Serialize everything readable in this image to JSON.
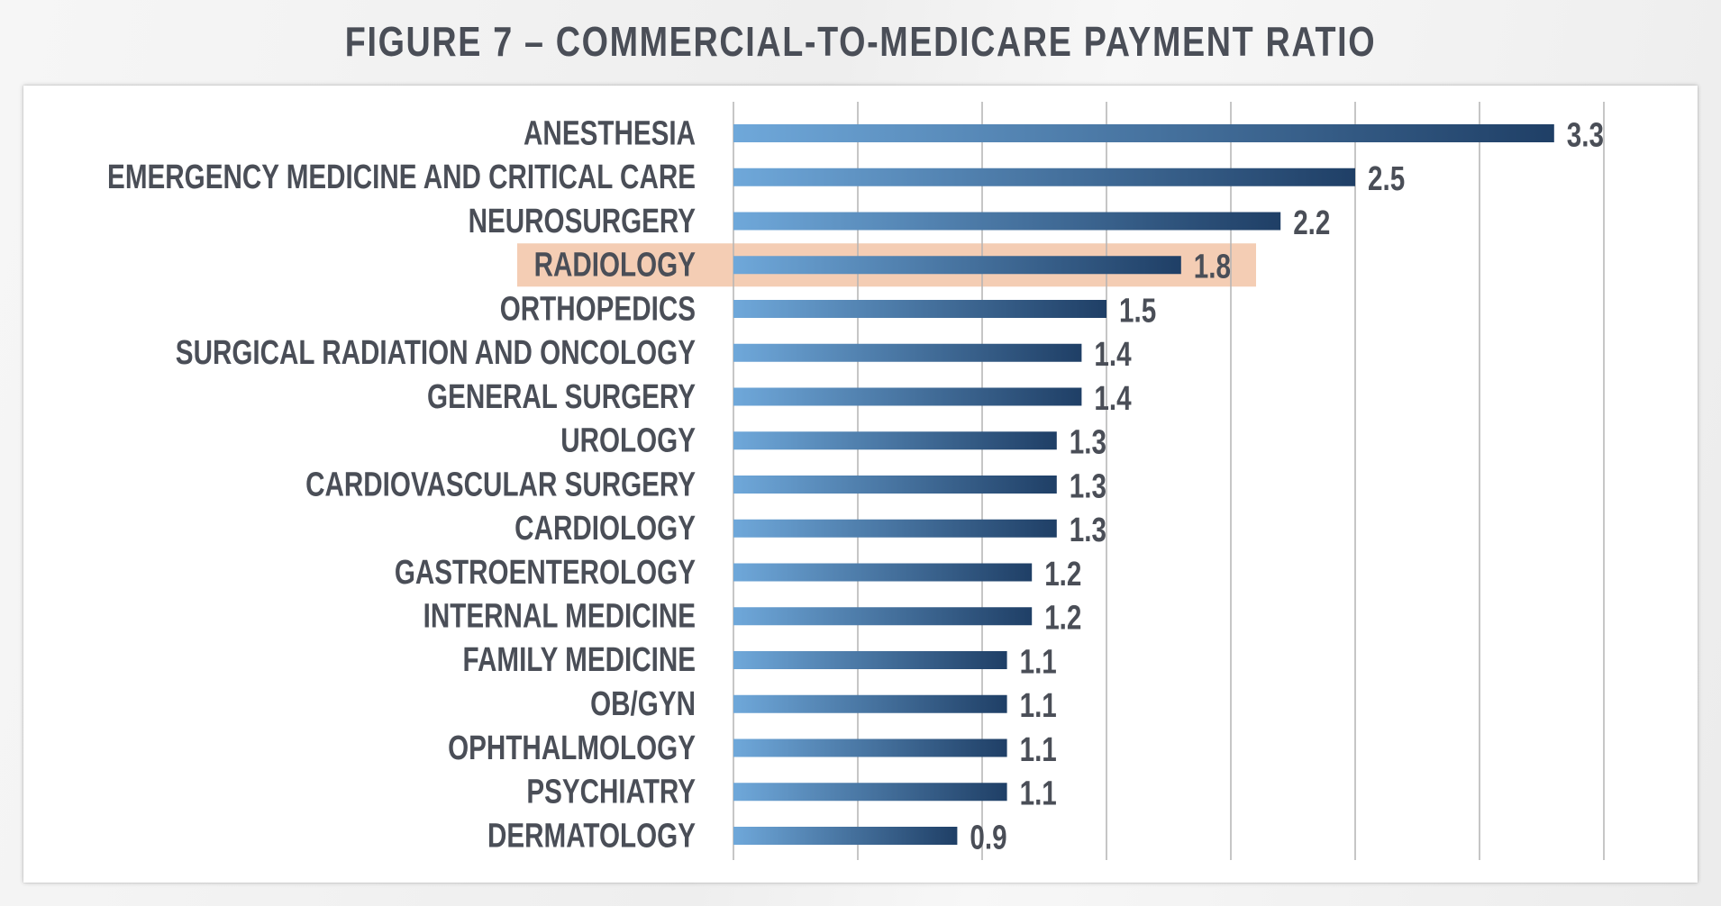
{
  "title": "FIGURE 7 – COMMERCIAL-TO-MEDICARE PAYMENT RATIO",
  "chart_data": {
    "type": "bar",
    "orientation": "horizontal",
    "title": "FIGURE 7 – COMMERCIAL-TO-MEDICARE PAYMENT RATIO",
    "xlabel": "",
    "ylabel": "",
    "xlim": [
      0,
      3.5
    ],
    "grid": "vertical gridlines every 0.5",
    "legend": "none",
    "highlighted_category": "RADIOLOGY",
    "categories": [
      "ANESTHESIA",
      "EMERGENCY MEDICINE AND CRITICAL CARE",
      "NEUROSURGERY",
      "RADIOLOGY",
      "ORTHOPEDICS",
      "SURGICAL RADIATION AND ONCOLOGY",
      "GENERAL SURGERY",
      "UROLOGY",
      "CARDIOVASCULAR SURGERY",
      "CARDIOLOGY",
      "GASTROENTEROLOGY",
      "INTERNAL MEDICINE",
      "FAMILY MEDICINE",
      "OB/GYN",
      "OPHTHALMOLOGY",
      "PSYCHIATRY",
      "DERMATOLOGY"
    ],
    "values": [
      3.3,
      2.5,
      2.2,
      1.8,
      1.5,
      1.4,
      1.4,
      1.3,
      1.3,
      1.3,
      1.2,
      1.2,
      1.1,
      1.1,
      1.1,
      1.1,
      0.9
    ],
    "value_labels": [
      "3.3",
      "2.5",
      "2.2",
      "1.8",
      "1.5",
      "1.4",
      "1.4",
      "1.3",
      "1.3",
      "1.3",
      "1.2",
      "1.2",
      "1.1",
      "1.1",
      "1.1",
      "1.1",
      "0.9"
    ]
  },
  "colors": {
    "bar_gradient_start": "#6fa8da",
    "bar_gradient_end": "#1f3f66",
    "highlight_band": "#f4cdb4",
    "gridline": "#b3b3b3",
    "text": "#4a4e57"
  }
}
